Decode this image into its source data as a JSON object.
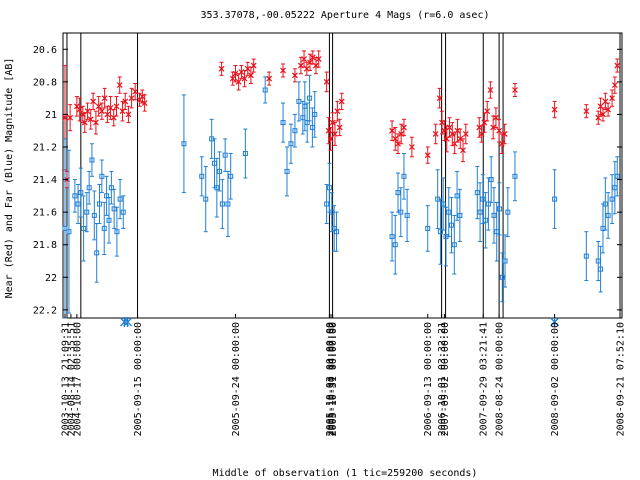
{
  "chart_data": {
    "type": "scatter",
    "title": "353.37078,-00.05222   Aperture 4 Mags (r=6.0 asec)",
    "xlabel": "Middle of observation (1 tic=259200 seconds)",
    "ylabel": "Near (Red) and Far (Blue) Magnitude [AB]",
    "ylim": [
      22.25,
      20.5
    ],
    "y_inverted": true,
    "y_ticks": [
      "20.6",
      "20.8",
      "21",
      "21.2",
      "21.4",
      "21.6",
      "21.8",
      "22",
      "22.2"
    ],
    "x_tick_labels": [
      "2003-10-13 21:09:31",
      "2004-08-14 02:35:51",
      "2004-10-17 00:00:00",
      "2005-09-15 00:00:00",
      "2005-09-24 00:00:00",
      "2005-10-03 00:00:00",
      "2005-10-30 14:07:52",
      "2005-10-31 00:00:00",
      "2006-09-13 00:00:00",
      "2006-10-01 03:32:21",
      "2007-09-02 00:00:00",
      "2007-09-29 03:21:41",
      "2008-08-24 00:00:00",
      "2008-09-02 00:00:00",
      "2008-09-21 07:52:10"
    ],
    "grid": false,
    "legend": "none",
    "colors": {
      "near": "#e8121c",
      "far": "#1f7fd6",
      "segment": "#000000"
    },
    "series": [
      {
        "name": "Near",
        "marker": "x",
        "points": [
          {
            "t": 0.5,
            "y": 21.02,
            "e": 0.32
          },
          {
            "t": 1.0,
            "y": 21.4,
            "e": 0.05
          },
          {
            "t": 1.8,
            "y": 21.02,
            "e": 0.08
          },
          {
            "t": 3.5,
            "y": 20.95,
            "e": 0.06
          },
          {
            "t": 4.2,
            "y": 20.97,
            "e": 0.07
          },
          {
            "t": 5.0,
            "y": 21.0,
            "e": 0.05
          },
          {
            "t": 5.5,
            "y": 21.05,
            "e": 0.06
          },
          {
            "t": 6.2,
            "y": 20.98,
            "e": 0.05
          },
          {
            "t": 7.0,
            "y": 21.03,
            "e": 0.06
          },
          {
            "t": 7.6,
            "y": 20.92,
            "e": 0.05
          },
          {
            "t": 8.3,
            "y": 21.05,
            "e": 0.07
          },
          {
            "t": 9.0,
            "y": 20.95,
            "e": 0.06
          },
          {
            "t": 9.8,
            "y": 20.98,
            "e": 0.05
          },
          {
            "t": 10.5,
            "y": 20.9,
            "e": 0.06
          },
          {
            "t": 11.2,
            "y": 21.0,
            "e": 0.05
          },
          {
            "t": 12.0,
            "y": 20.96,
            "e": 0.07
          },
          {
            "t": 12.8,
            "y": 21.02,
            "e": 0.05
          },
          {
            "t": 13.5,
            "y": 20.95,
            "e": 0.06
          },
          {
            "t": 14.3,
            "y": 20.82,
            "e": 0.05
          },
          {
            "t": 15.0,
            "y": 20.98,
            "e": 0.06
          },
          {
            "t": 15.7,
            "y": 20.92,
            "e": 0.05
          },
          {
            "t": 16.5,
            "y": 21.0,
            "e": 0.05
          },
          {
            "t": 17.3,
            "y": 20.9,
            "e": 0.06
          },
          {
            "t": 18.2,
            "y": 20.86,
            "e": 0.05
          },
          {
            "t": 19.3,
            "y": 20.91,
            "e": 0.04
          },
          {
            "t": 20.0,
            "y": 20.89,
            "e": 0.04
          },
          {
            "t": 20.6,
            "y": 20.93,
            "e": 0.05
          },
          {
            "t": 40.0,
            "y": 20.72,
            "e": 0.04
          },
          {
            "t": 42.8,
            "y": 20.78,
            "e": 0.04
          },
          {
            "t": 43.5,
            "y": 20.75,
            "e": 0.05
          },
          {
            "t": 44.3,
            "y": 20.8,
            "e": 0.05
          },
          {
            "t": 45.0,
            "y": 20.74,
            "e": 0.04
          },
          {
            "t": 45.8,
            "y": 20.78,
            "e": 0.05
          },
          {
            "t": 46.6,
            "y": 20.72,
            "e": 0.04
          },
          {
            "t": 47.4,
            "y": 20.76,
            "e": 0.05
          },
          {
            "t": 48.1,
            "y": 20.7,
            "e": 0.04
          },
          {
            "t": 52.0,
            "y": 20.78,
            "e": 0.04
          },
          {
            "t": 55.5,
            "y": 20.73,
            "e": 0.04
          },
          {
            "t": 58.5,
            "y": 20.76,
            "e": 0.04
          },
          {
            "t": 60.0,
            "y": 20.7,
            "e": 0.05
          },
          {
            "t": 60.8,
            "y": 20.66,
            "e": 0.05
          },
          {
            "t": 61.5,
            "y": 20.72,
            "e": 0.04
          },
          {
            "t": 62.3,
            "y": 20.68,
            "e": 0.05
          },
          {
            "t": 63.0,
            "y": 20.65,
            "e": 0.04
          },
          {
            "t": 63.8,
            "y": 20.7,
            "e": 0.05
          },
          {
            "t": 64.5,
            "y": 20.66,
            "e": 0.05
          },
          {
            "t": 66.5,
            "y": 20.8,
            "e": 0.06
          },
          {
            "t": 67.0,
            "y": 21.1,
            "e": 0.08
          },
          {
            "t": 67.5,
            "y": 21.15,
            "e": 0.07
          },
          {
            "t": 68.0,
            "y": 21.05,
            "e": 0.06
          },
          {
            "t": 68.6,
            "y": 21.12,
            "e": 0.07
          },
          {
            "t": 69.2,
            "y": 20.98,
            "e": 0.06
          },
          {
            "t": 69.8,
            "y": 21.08,
            "e": 0.05
          },
          {
            "t": 70.3,
            "y": 20.92,
            "e": 0.05
          },
          {
            "t": 83.0,
            "y": 21.1,
            "e": 0.06
          },
          {
            "t": 83.8,
            "y": 21.15,
            "e": 0.07
          },
          {
            "t": 84.5,
            "y": 21.18,
            "e": 0.06
          },
          {
            "t": 85.3,
            "y": 21.12,
            "e": 0.06
          },
          {
            "t": 86.0,
            "y": 21.08,
            "e": 0.05
          },
          {
            "t": 88.0,
            "y": 21.2,
            "e": 0.06
          },
          {
            "t": 92.0,
            "y": 21.25,
            "e": 0.05
          },
          {
            "t": 94.0,
            "y": 21.12,
            "e": 0.06
          },
          {
            "t": 95.0,
            "y": 20.9,
            "e": 0.06
          },
          {
            "t": 95.6,
            "y": 21.05,
            "e": 0.07
          },
          {
            "t": 96.2,
            "y": 21.1,
            "e": 0.06
          },
          {
            "t": 96.8,
            "y": 21.15,
            "e": 0.08
          },
          {
            "t": 97.5,
            "y": 21.08,
            "e": 0.06
          },
          {
            "t": 98.2,
            "y": 21.12,
            "e": 0.07
          },
          {
            "t": 98.8,
            "y": 21.18,
            "e": 0.06
          },
          {
            "t": 99.5,
            "y": 21.1,
            "e": 0.07
          },
          {
            "t": 100.2,
            "y": 21.15,
            "e": 0.06
          },
          {
            "t": 100.9,
            "y": 21.22,
            "e": 0.07
          },
          {
            "t": 101.6,
            "y": 21.12,
            "e": 0.06
          },
          {
            "t": 105.0,
            "y": 21.08,
            "e": 0.06
          },
          {
            "t": 105.6,
            "y": 21.12,
            "e": 0.05
          },
          {
            "t": 106.3,
            "y": 21.05,
            "e": 0.06
          },
          {
            "t": 107.0,
            "y": 20.98,
            "e": 0.06
          },
          {
            "t": 107.8,
            "y": 20.85,
            "e": 0.05
          },
          {
            "t": 108.5,
            "y": 21.08,
            "e": 0.07
          },
          {
            "t": 109.2,
            "y": 21.02,
            "e": 0.06
          },
          {
            "t": 110.0,
            "y": 21.1,
            "e": 0.07
          },
          {
            "t": 110.7,
            "y": 21.18,
            "e": 0.06
          },
          {
            "t": 111.4,
            "y": 21.12,
            "e": 0.06
          },
          {
            "t": 114.0,
            "y": 20.85,
            "e": 0.04
          },
          {
            "t": 124.0,
            "y": 20.97,
            "e": 0.05
          },
          {
            "t": 132.0,
            "y": 20.98,
            "e": 0.04
          },
          {
            "t": 135.0,
            "y": 21.02,
            "e": 0.04
          },
          {
            "t": 135.6,
            "y": 20.95,
            "e": 0.05
          },
          {
            "t": 136.2,
            "y": 21.0,
            "e": 0.04
          },
          {
            "t": 136.8,
            "y": 20.92,
            "e": 0.05
          },
          {
            "t": 137.5,
            "y": 20.97,
            "e": 0.04
          },
          {
            "t": 138.5,
            "y": 20.9,
            "e": 0.05
          },
          {
            "t": 139.2,
            "y": 20.82,
            "e": 0.05
          },
          {
            "t": 139.8,
            "y": 20.7,
            "e": 0.04
          }
        ]
      },
      {
        "name": "Far",
        "marker": "square",
        "points": [
          {
            "t": 0.5,
            "y": 21.7,
            "e": 0.55
          },
          {
            "t": 1.5,
            "y": 21.72,
            "e": 0.5
          },
          {
            "t": 3.0,
            "y": 21.5,
            "e": 0.1
          },
          {
            "t": 3.8,
            "y": 21.55,
            "e": 0.12
          },
          {
            "t": 4.5,
            "y": 21.48,
            "e": 0.15
          },
          {
            "t": 5.2,
            "y": 21.7,
            "e": 0.2
          },
          {
            "t": 6.0,
            "y": 21.6,
            "e": 0.12
          },
          {
            "t": 6.6,
            "y": 21.45,
            "e": 0.1
          },
          {
            "t": 7.3,
            "y": 21.28,
            "e": 0.1
          },
          {
            "t": 7.9,
            "y": 21.62,
            "e": 0.15
          },
          {
            "t": 8.5,
            "y": 21.85,
            "e": 0.18
          },
          {
            "t": 9.2,
            "y": 21.55,
            "e": 0.12
          },
          {
            "t": 9.8,
            "y": 21.38,
            "e": 0.1
          },
          {
            "t": 10.4,
            "y": 21.7,
            "e": 0.16
          },
          {
            "t": 11.0,
            "y": 21.5,
            "e": 0.12
          },
          {
            "t": 11.6,
            "y": 21.65,
            "e": 0.14
          },
          {
            "t": 12.2,
            "y": 21.45,
            "e": 0.1
          },
          {
            "t": 12.9,
            "y": 21.58,
            "e": 0.12
          },
          {
            "t": 13.6,
            "y": 21.72,
            "e": 0.15
          },
          {
            "t": 14.4,
            "y": 21.52,
            "e": 0.12
          },
          {
            "t": 15.2,
            "y": 21.6,
            "e": 0.1
          },
          {
            "t": 30.5,
            "y": 21.18,
            "e": 0.3
          },
          {
            "t": 35.0,
            "y": 21.38,
            "e": 0.12
          },
          {
            "t": 36.0,
            "y": 21.52,
            "e": 0.2
          },
          {
            "t": 37.5,
            "y": 21.15,
            "e": 0.12
          },
          {
            "t": 38.2,
            "y": 21.3,
            "e": 0.15
          },
          {
            "t": 38.8,
            "y": 21.45,
            "e": 0.18
          },
          {
            "t": 39.5,
            "y": 21.35,
            "e": 0.12
          },
          {
            "t": 40.2,
            "y": 21.55,
            "e": 0.15
          },
          {
            "t": 40.9,
            "y": 21.25,
            "e": 0.1
          },
          {
            "t": 41.6,
            "y": 21.55,
            "e": 0.2
          },
          {
            "t": 42.3,
            "y": 21.38,
            "e": 0.14
          },
          {
            "t": 46.0,
            "y": 21.24,
            "e": 0.15
          },
          {
            "t": 51.0,
            "y": 20.85,
            "e": 0.08
          },
          {
            "t": 55.5,
            "y": 21.05,
            "e": 0.12
          },
          {
            "t": 56.5,
            "y": 21.35,
            "e": 0.15
          },
          {
            "t": 57.5,
            "y": 21.18,
            "e": 0.12
          },
          {
            "t": 58.5,
            "y": 21.1,
            "e": 0.1
          },
          {
            "t": 59.5,
            "y": 20.92,
            "e": 0.12
          },
          {
            "t": 60.5,
            "y": 21.02,
            "e": 0.1
          },
          {
            "t": 61.0,
            "y": 20.95,
            "e": 0.15
          },
          {
            "t": 61.6,
            "y": 21.05,
            "e": 0.12
          },
          {
            "t": 62.2,
            "y": 20.9,
            "e": 0.14
          },
          {
            "t": 62.9,
            "y": 21.08,
            "e": 0.12
          },
          {
            "t": 63.5,
            "y": 21.0,
            "e": 0.14
          },
          {
            "t": 66.5,
            "y": 21.55,
            "e": 0.12
          },
          {
            "t": 67.2,
            "y": 21.45,
            "e": 0.15
          },
          {
            "t": 67.8,
            "y": 21.6,
            "e": 0.12
          },
          {
            "t": 68.4,
            "y": 21.7,
            "e": 0.14
          },
          {
            "t": 69.0,
            "y": 21.72,
            "e": 0.12
          },
          {
            "t": 83.0,
            "y": 21.75,
            "e": 0.15
          },
          {
            "t": 83.8,
            "y": 21.8,
            "e": 0.18
          },
          {
            "t": 84.5,
            "y": 21.48,
            "e": 0.12
          },
          {
            "t": 85.2,
            "y": 21.6,
            "e": 0.15
          },
          {
            "t": 86.0,
            "y": 21.38,
            "e": 0.14
          },
          {
            "t": 86.8,
            "y": 21.62,
            "e": 0.16
          },
          {
            "t": 92.0,
            "y": 21.7,
            "e": 0.14
          },
          {
            "t": 94.5,
            "y": 21.52,
            "e": 0.18
          },
          {
            "t": 95.2,
            "y": 21.72,
            "e": 0.2
          },
          {
            "t": 95.9,
            "y": 21.55,
            "e": 0.16
          },
          {
            "t": 96.6,
            "y": 21.75,
            "e": 0.18
          },
          {
            "t": 97.3,
            "y": 21.6,
            "e": 0.15
          },
          {
            "t": 98.0,
            "y": 21.68,
            "e": 0.17
          },
          {
            "t": 98.7,
            "y": 21.8,
            "e": 0.18
          },
          {
            "t": 99.4,
            "y": 21.5,
            "e": 0.15
          },
          {
            "t": 100.1,
            "y": 21.62,
            "e": 0.16
          },
          {
            "t": 104.5,
            "y": 21.48,
            "e": 0.16
          },
          {
            "t": 105.2,
            "y": 21.6,
            "e": 0.18
          },
          {
            "t": 105.9,
            "y": 21.52,
            "e": 0.15
          },
          {
            "t": 106.6,
            "y": 21.65,
            "e": 0.17
          },
          {
            "t": 107.3,
            "y": 21.55,
            "e": 0.16
          },
          {
            "t": 108.0,
            "y": 21.4,
            "e": 0.14
          },
          {
            "t": 108.7,
            "y": 21.62,
            "e": 0.17
          },
          {
            "t": 109.4,
            "y": 21.72,
            "e": 0.18
          },
          {
            "t": 110.1,
            "y": 21.58,
            "e": 0.16
          },
          {
            "t": 110.8,
            "y": 22.0,
            "e": 0.15
          },
          {
            "t": 111.5,
            "y": 21.9,
            "e": 0.16
          },
          {
            "t": 112.2,
            "y": 21.6,
            "e": 0.15
          },
          {
            "t": 114.0,
            "y": 21.38,
            "e": 0.15
          },
          {
            "t": 124.0,
            "y": 21.52,
            "e": 0.18
          },
          {
            "t": 132.0,
            "y": 21.87,
            "e": 0.15
          },
          {
            "t": 135.0,
            "y": 21.9,
            "e": 0.12
          },
          {
            "t": 135.6,
            "y": 21.95,
            "e": 0.14
          },
          {
            "t": 136.2,
            "y": 21.7,
            "e": 0.15
          },
          {
            "t": 136.8,
            "y": 21.55,
            "e": 0.16
          },
          {
            "t": 137.5,
            "y": 21.62,
            "e": 0.14
          },
          {
            "t": 138.5,
            "y": 21.52,
            "e": 0.15
          },
          {
            "t": 139.2,
            "y": 21.45,
            "e": 0.16
          },
          {
            "t": 139.8,
            "y": 21.38,
            "e": 0.12
          }
        ]
      }
    ],
    "upper_limits": [
      {
        "t": 15.5,
        "series": "Far"
      },
      {
        "t": 16.3,
        "series": "Far"
      },
      {
        "t": 124.0,
        "series": "Far"
      }
    ]
  }
}
